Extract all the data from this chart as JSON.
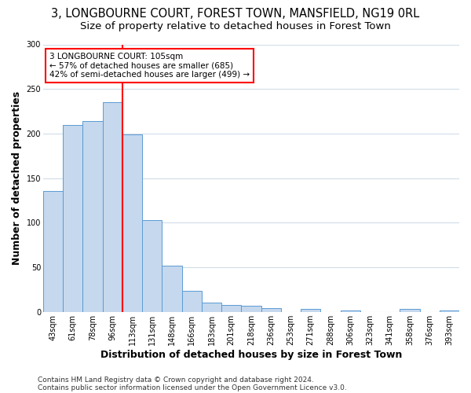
{
  "title_line1": "3, LONGBOURNE COURT, FOREST TOWN, MANSFIELD, NG19 0RL",
  "title_line2": "Size of property relative to detached houses in Forest Town",
  "xlabel": "Distribution of detached houses by size in Forest Town",
  "ylabel": "Number of detached properties",
  "footnote1": "Contains HM Land Registry data © Crown copyright and database right 2024.",
  "footnote2": "Contains public sector information licensed under the Open Government Licence v3.0.",
  "categories": [
    "43sqm",
    "61sqm",
    "78sqm",
    "96sqm",
    "113sqm",
    "131sqm",
    "148sqm",
    "166sqm",
    "183sqm",
    "201sqm",
    "218sqm",
    "236sqm",
    "253sqm",
    "271sqm",
    "288sqm",
    "306sqm",
    "323sqm",
    "341sqm",
    "358sqm",
    "376sqm",
    "393sqm"
  ],
  "values": [
    136,
    210,
    214,
    235,
    199,
    103,
    52,
    24,
    10,
    8,
    7,
    4,
    0,
    3,
    0,
    2,
    0,
    0,
    3,
    0,
    2
  ],
  "bar_color": "#c5d8ed",
  "bar_edge_color": "#5b9bd5",
  "vline_x_index": 4,
  "annotation_text": "3 LONGBOURNE COURT: 105sqm\n← 57% of detached houses are smaller (685)\n42% of semi-detached houses are larger (499) →",
  "annotation_box_color": "white",
  "annotation_border_color": "red",
  "vline_color": "red",
  "ylim": [
    0,
    300
  ],
  "yticks": [
    0,
    50,
    100,
    150,
    200,
    250,
    300
  ],
  "background_color": "#ffffff",
  "grid_color": "#d0dce8",
  "title_fontsize": 10.5,
  "subtitle_fontsize": 9.5,
  "tick_fontsize": 7,
  "axis_label_fontsize": 9,
  "footnote_fontsize": 6.5
}
